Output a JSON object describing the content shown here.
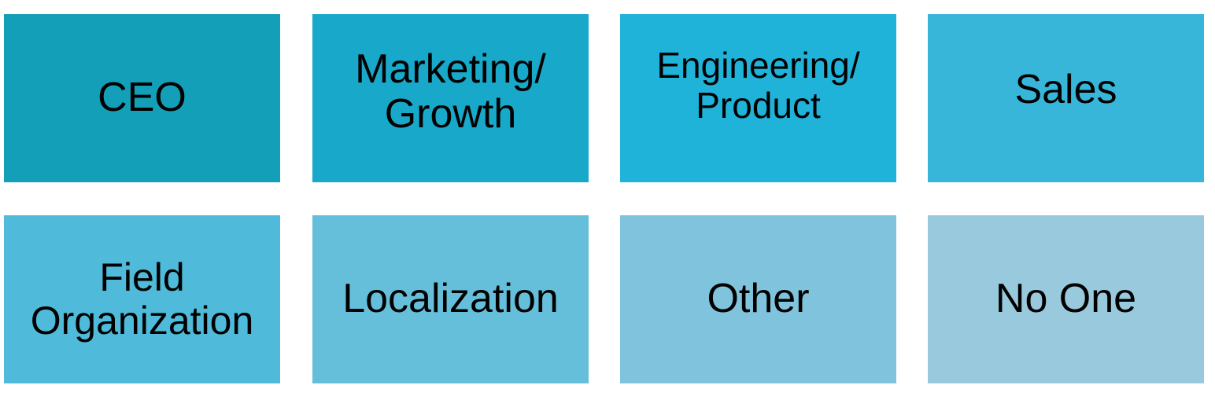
{
  "tiles": [
    {
      "label": "CEO",
      "color": "#139fb8"
    },
    {
      "label": "Marketing/\nGrowth",
      "color": "#18a8c9"
    },
    {
      "label": "Engineering/\nProduct",
      "color": "#1fb3da"
    },
    {
      "label": "Sales",
      "color": "#37b6da"
    },
    {
      "label": "Field\nOrganization",
      "color": "#4fbad9"
    },
    {
      "label": "Localization",
      "color": "#66bfda"
    },
    {
      "label": "Other",
      "color": "#7fc3dc"
    },
    {
      "label": "No One",
      "color": "#98c9dd"
    }
  ]
}
